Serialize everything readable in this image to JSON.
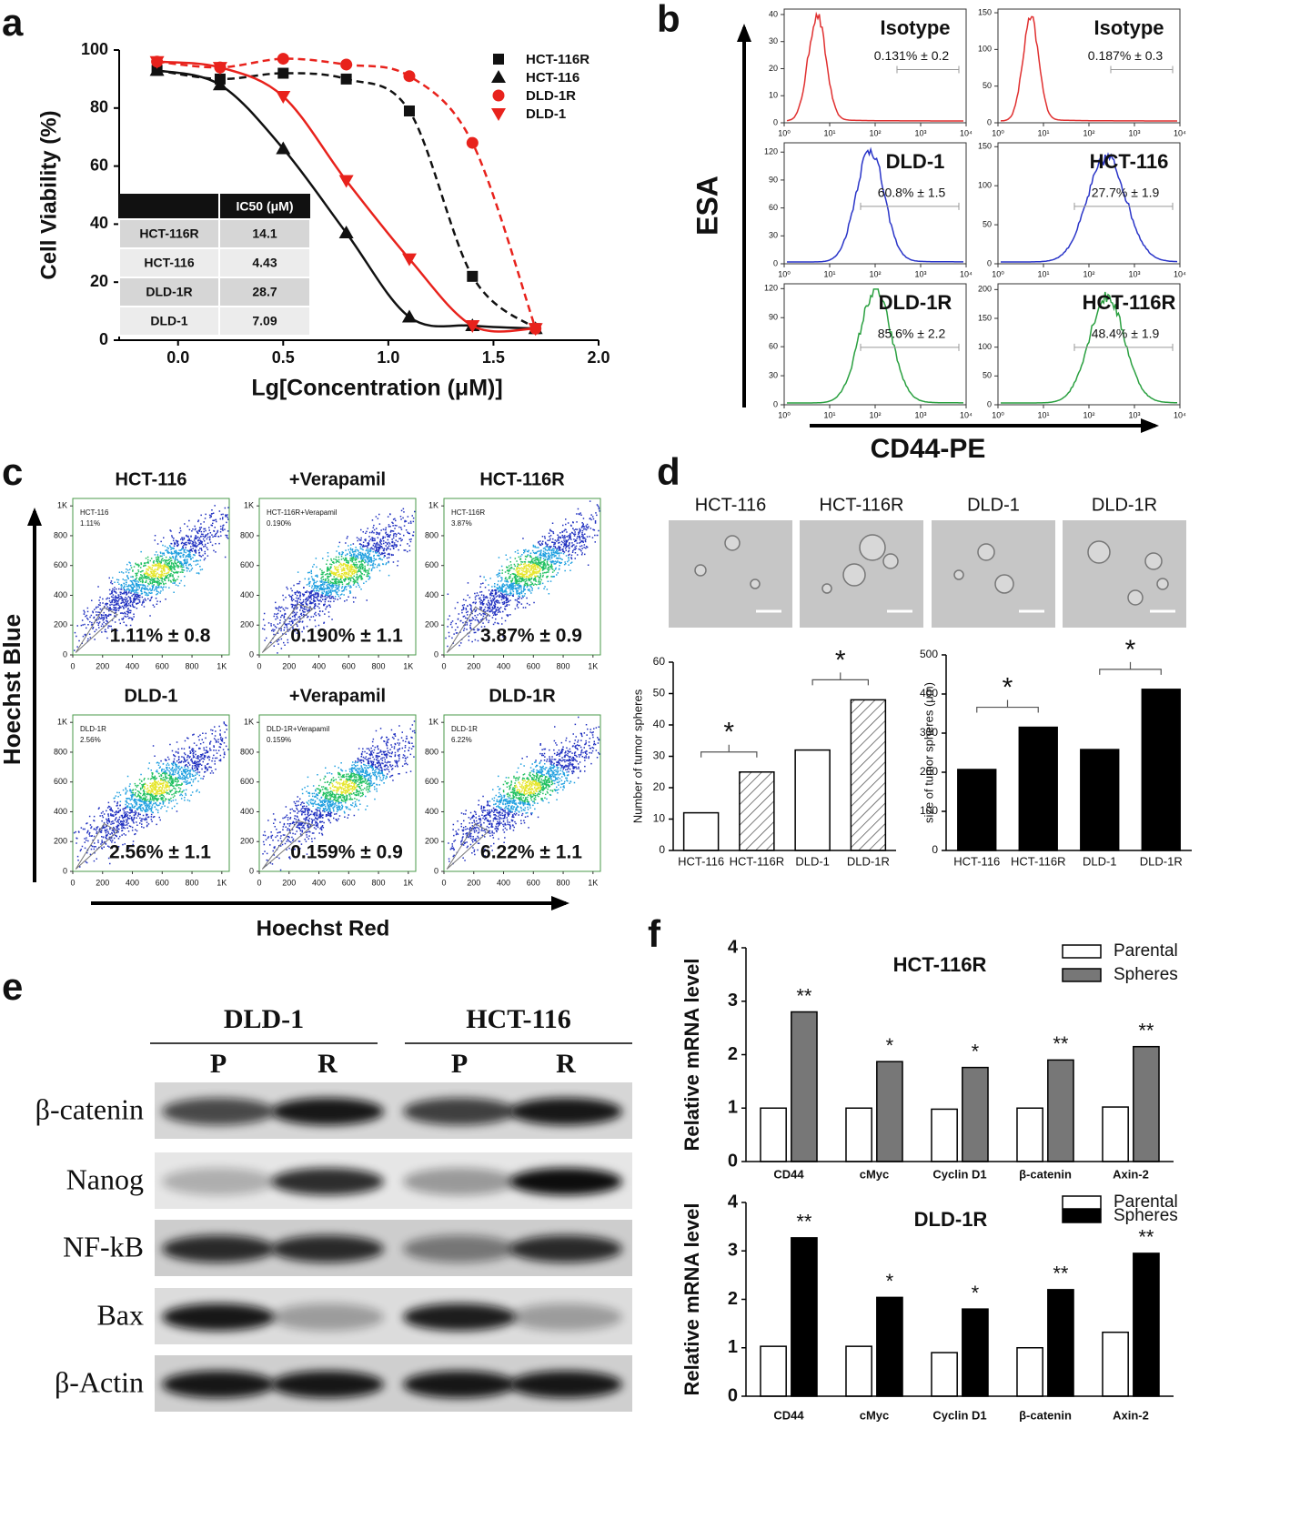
{
  "panel_labels": [
    "a",
    "b",
    "c",
    "d",
    "e",
    "f"
  ],
  "chart_data": [
    {
      "type": "line",
      "x_label": "Lg[Concentration (μM)]",
      "y_label": "Cell Viability (%)",
      "x": [
        -0.1,
        0.2,
        0.5,
        0.8,
        1.1,
        1.4,
        1.7
      ],
      "xlim": [
        -0.28,
        2.0
      ],
      "xticks": [
        {
          "value": 0,
          "label": "0.0"
        },
        0.5,
        {
          "value": 1,
          "label": "1.0"
        },
        1.5,
        {
          "value": 2,
          "label": "2.0"
        }
      ],
      "ylim": [
        0,
        100
      ],
      "yticks": [
        0,
        20,
        40,
        60,
        80,
        100
      ],
      "series": [
        {
          "name": "HCT-116R",
          "color": "#111111",
          "marker": "square",
          "line_style": "dashed",
          "values": [
            93,
            90,
            92,
            90,
            79,
            22,
            4
          ]
        },
        {
          "name": "HCT-116",
          "color": "#111111",
          "marker": "triangle",
          "line_style": "solid",
          "values": [
            93,
            88,
            66,
            37,
            8,
            5,
            4
          ]
        },
        {
          "name": "DLD-1R",
          "color": "#e8221c",
          "marker": "circle",
          "line_style": "dashed",
          "values": [
            96,
            94,
            97,
            95,
            91,
            68,
            4
          ]
        },
        {
          "name": "DLD-1",
          "color": "#e8221c",
          "marker": "triangle-down",
          "line_style": "solid",
          "values": [
            96,
            94,
            84,
            55,
            28,
            5,
            4
          ]
        }
      ],
      "table": {
        "header": "IC50 (μM)",
        "rows": [
          [
            "HCT-116R",
            14.1
          ],
          [
            "HCT-116",
            4.43
          ],
          [
            "DLD-1R",
            28.7
          ],
          [
            "DLD-1",
            7.09
          ]
        ]
      }
    },
    {
      "type": "bar",
      "y_label": "Number of tumor spheres",
      "categories": [
        "HCT-116",
        "HCT-116R",
        "DLD-1",
        "DLD-1R"
      ],
      "values": [
        12,
        25,
        32,
        48
      ],
      "fills": [
        "open",
        "hatched",
        "open",
        "hatched"
      ],
      "color": "#000000",
      "ylim": [
        0,
        60
      ],
      "yticks": [
        0,
        10,
        20,
        30,
        40,
        50,
        60
      ],
      "annotations": [
        "*",
        "*"
      ]
    },
    {
      "type": "bar",
      "y_label": "size of tumor spheres (μm)",
      "categories": [
        "HCT-116",
        "HCT-116R",
        "DLD-1",
        "DLD-1R"
      ],
      "values": [
        207,
        315,
        258,
        412
      ],
      "fills": [
        "solid",
        "solid",
        "solid",
        "solid"
      ],
      "color": "#000000",
      "ylim": [
        0,
        500
      ],
      "yticks": [
        0,
        100,
        200,
        300,
        400,
        500
      ],
      "annotations": [
        "*",
        "*"
      ]
    },
    {
      "type": "bar",
      "title": "HCT-116R",
      "y_label": "Relative mRNA level",
      "categories": [
        "CD44",
        "cMyc",
        "Cyclin D1",
        "β-catenin",
        "Axin-2"
      ],
      "series": [
        {
          "name": "Parental",
          "color": "#ffffff",
          "values": [
            1.0,
            1.0,
            0.98,
            1.0,
            1.02
          ]
        },
        {
          "name": "Spheres",
          "color": "#777777",
          "values": [
            2.8,
            1.87,
            1.76,
            1.9,
            2.15
          ]
        }
      ],
      "ylim": [
        0,
        4
      ],
      "yticks": [
        0,
        1,
        2,
        3,
        4
      ],
      "value_annotations": [
        "**",
        "*",
        "*",
        "**",
        "**"
      ]
    },
    {
      "type": "bar",
      "title": "DLD-1R",
      "y_label": "Relative mRNA level",
      "categories": [
        "CD44",
        "cMyc",
        "Cyclin D1",
        "β-catenin",
        "Axin-2"
      ],
      "series": [
        {
          "name": "Parental",
          "color": "#ffffff",
          "values": [
            1.03,
            1.03,
            0.9,
            1.0,
            1.32
          ]
        },
        {
          "name": "Spheres",
          "color": "#000000",
          "values": [
            3.27,
            2.04,
            1.8,
            2.2,
            2.95
          ]
        }
      ],
      "ylim": [
        0,
        4
      ],
      "yticks": [
        0,
        1,
        2,
        3,
        4
      ],
      "value_annotations": [
        "**",
        "*",
        "*",
        "**",
        "**"
      ]
    }
  ],
  "flow_cytometry": {
    "y_label": "ESA",
    "x_label": "CD44-PE",
    "log_x": true,
    "xlim": [
      1,
      10000
    ],
    "xticks": [
      {
        "value": 1,
        "label": "10⁰"
      },
      {
        "value": 10,
        "label": "10¹"
      },
      {
        "value": 100,
        "label": "10²"
      },
      {
        "value": 1000,
        "label": "10³"
      },
      {
        "value": 10000,
        "label": "10⁴"
      }
    ],
    "plots": [
      {
        "label": "Isotype",
        "stat": "0.131% ± 0.2",
        "color": "#e03030",
        "ylim": [
          0,
          42
        ],
        "yticks": [
          0,
          10,
          20,
          30,
          40
        ]
      },
      {
        "label": "Isotype",
        "stat": "0.187% ± 0.3",
        "color": "#e03030",
        "ylim": [
          0,
          155
        ],
        "yticks": [
          0,
          50,
          100,
          150
        ]
      },
      {
        "label": "DLD-1",
        "stat": "60.8% ± 1.5",
        "color": "#2a35c8",
        "ylim": [
          0,
          130
        ],
        "yticks": [
          0,
          30,
          60,
          90,
          120
        ]
      },
      {
        "label": "HCT-116",
        "stat": "27.7% ± 1.9",
        "color": "#2a35c8",
        "ylim": [
          0,
          155
        ],
        "yticks": [
          0,
          50,
          100,
          150
        ]
      },
      {
        "label": "DLD-1R",
        "stat": "85.6% ± 2.2",
        "color": "#2aa040",
        "ylim": [
          0,
          125
        ],
        "yticks": [
          0,
          30,
          60,
          90,
          120
        ]
      },
      {
        "label": "HCT-116R",
        "stat": "48.4% ± 1.9",
        "color": "#2aa040",
        "ylim": [
          0,
          210
        ],
        "yticks": [
          0,
          50,
          100,
          150,
          200
        ]
      }
    ]
  },
  "side_population": {
    "y_label": "Hoechst Blue",
    "x_label": "Hoechst Red",
    "lim": [
      0,
      1050
    ],
    "ticks": [
      0,
      200,
      400,
      600,
      800,
      {
        "value": 1000,
        "label": "1K"
      }
    ],
    "plots": [
      {
        "title": "HCT-116",
        "gate_name": "HCT-116",
        "gate_percent": "1.11%",
        "stat": "1.11% ± 0.8"
      },
      {
        "title": "+Verapamil",
        "gate_name": "HCT-116R+Verapamil",
        "gate_percent": "0.190%",
        "stat": "0.190% ± 1.1"
      },
      {
        "title": "HCT-116R",
        "gate_name": "HCT-116R",
        "gate_percent": "3.87%",
        "stat": "3.87% ± 0.9"
      },
      {
        "title": "DLD-1",
        "gate_name": "DLD-1R",
        "gate_percent": "2.56%",
        "stat": "2.56% ± 1.1"
      },
      {
        "title": "+Verapamil",
        "gate_name": "DLD-1R+Verapamil",
        "gate_percent": "0.159%",
        "stat": "0.159% ± 0.9"
      },
      {
        "title": "DLD-1R",
        "gate_name": "DLD-1R",
        "gate_percent": "6.22%",
        "stat": "6.22% ± 1.1"
      }
    ]
  },
  "sphere_images": {
    "labels": [
      "HCT-116",
      "HCT-116R",
      "DLD-1",
      "DLD-1R"
    ]
  },
  "western_blot": {
    "groups": [
      "DLD-1",
      "HCT-116"
    ],
    "lanes": [
      "P",
      "R",
      "P",
      "R"
    ],
    "rows": [
      "β-catenin",
      "Nanog",
      "NF-kB",
      "Bax",
      "β-Actin"
    ]
  }
}
